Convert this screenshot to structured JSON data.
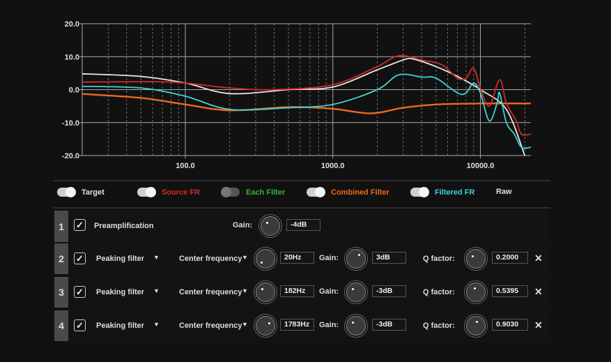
{
  "chart_data": {
    "type": "line",
    "xscale": "log",
    "xlim": [
      20,
      22000
    ],
    "ylim": [
      -20,
      20
    ],
    "xticks": [
      {
        "v": 100,
        "label": "100.0"
      },
      {
        "v": 1000,
        "label": "1000.0"
      },
      {
        "v": 10000,
        "label": "10000.0"
      }
    ],
    "yticks": [
      {
        "v": 20,
        "label": "20.0"
      },
      {
        "v": 10,
        "label": "10.0"
      },
      {
        "v": 0,
        "label": "0.0"
      },
      {
        "v": -10,
        "label": "-10.0"
      },
      {
        "v": -20,
        "label": "-20.0"
      }
    ],
    "grid": true,
    "series": [
      {
        "name": "Combined Filter",
        "color": "#ee6a1c",
        "points": [
          [
            20,
            -1.3
          ],
          [
            50,
            -2.5
          ],
          [
            100,
            -4.5
          ],
          [
            200,
            -6.3
          ],
          [
            500,
            -5.3
          ],
          [
            1000,
            -5.8
          ],
          [
            1800,
            -7.2
          ],
          [
            3000,
            -5.5
          ],
          [
            5000,
            -4.5
          ],
          [
            10000,
            -4.2
          ],
          [
            22000,
            -4.2
          ]
        ]
      },
      {
        "name": "Target",
        "color": "#e8e8e8",
        "points": [
          [
            20,
            4.8
          ],
          [
            50,
            4
          ],
          [
            100,
            2
          ],
          [
            200,
            -1.2
          ],
          [
            500,
            0
          ],
          [
            1000,
            0.8
          ],
          [
            2000,
            6
          ],
          [
            3000,
            9
          ],
          [
            3500,
            9.3
          ],
          [
            5000,
            7
          ],
          [
            7000,
            4
          ],
          [
            10000,
            0
          ],
          [
            15000,
            -6
          ],
          [
            20000,
            -20
          ]
        ]
      },
      {
        "name": "Source FR",
        "color": "#d42a2a",
        "points": [
          [
            20,
            2.3
          ],
          [
            60,
            2.4
          ],
          [
            100,
            2
          ],
          [
            200,
            0.5
          ],
          [
            400,
            0
          ],
          [
            1000,
            1.5
          ],
          [
            2000,
            7
          ],
          [
            2800,
            10.3
          ],
          [
            4000,
            9
          ],
          [
            5500,
            7.5
          ],
          [
            7000,
            3.5
          ],
          [
            8000,
            3.5
          ],
          [
            9000,
            6.5
          ],
          [
            10000,
            0.5
          ],
          [
            11500,
            -5
          ],
          [
            13500,
            3
          ],
          [
            15000,
            -4
          ],
          [
            17500,
            -9.5
          ],
          [
            19000,
            -13.5
          ],
          [
            22000,
            -13.5
          ]
        ]
      },
      {
        "name": "Filtered FR",
        "color": "#3fd4d4",
        "points": [
          [
            20,
            1
          ],
          [
            50,
            0.5
          ],
          [
            100,
            -2
          ],
          [
            200,
            -6
          ],
          [
            500,
            -5.5
          ],
          [
            1000,
            -4.5
          ],
          [
            2000,
            0
          ],
          [
            2800,
            4.5
          ],
          [
            4000,
            3.8
          ],
          [
            5000,
            3.5
          ],
          [
            7000,
            -1
          ],
          [
            8000,
            -1
          ],
          [
            9000,
            2
          ],
          [
            10000,
            -1
          ],
          [
            11500,
            -9.5
          ],
          [
            13000,
            -4
          ],
          [
            13500,
            -1
          ],
          [
            15000,
            -10
          ],
          [
            17000,
            -13.5
          ],
          [
            19000,
            -17.5
          ],
          [
            22000,
            -17.5
          ]
        ]
      }
    ]
  },
  "legend": [
    {
      "label": "Target",
      "on": true,
      "color": "#e0e0e0"
    },
    {
      "label": "Source FR",
      "on": true,
      "color": "#d42a2a"
    },
    {
      "label": "Each Filter",
      "on": false,
      "color": "#33b233"
    },
    {
      "label": "Combined Filter",
      "on": true,
      "color": "#ee6a1c"
    },
    {
      "label": "Filtered FR",
      "on": true,
      "color": "#3fd4d4"
    },
    {
      "label": "Raw",
      "color": "#e0e0e0"
    }
  ],
  "preamp": {
    "num": "1",
    "label": "Preamplification",
    "gain_label": "Gain:",
    "gain": "-4dB"
  },
  "filters": [
    {
      "num": "2",
      "type": "Peaking filter",
      "param": "Center frequency",
      "freq": "20Hz",
      "gain_label": "Gain:",
      "gain": "3dB",
      "q_label": "Q factor:",
      "q": "0.2000"
    },
    {
      "num": "3",
      "type": "Peaking filter",
      "param": "Center frequency",
      "freq": "182Hz",
      "gain_label": "Gain:",
      "gain": "-3dB",
      "q_label": "Q factor:",
      "q": "0.5395"
    },
    {
      "num": "4",
      "type": "Peaking filter",
      "param": "Center frequency",
      "freq": "1783Hz",
      "gain_label": "Gain:",
      "gain": "-3dB",
      "q_label": "Q factor:",
      "q": "0.9030"
    }
  ],
  "icons": {
    "check": "✓",
    "caret": "▼",
    "close": "✕"
  }
}
